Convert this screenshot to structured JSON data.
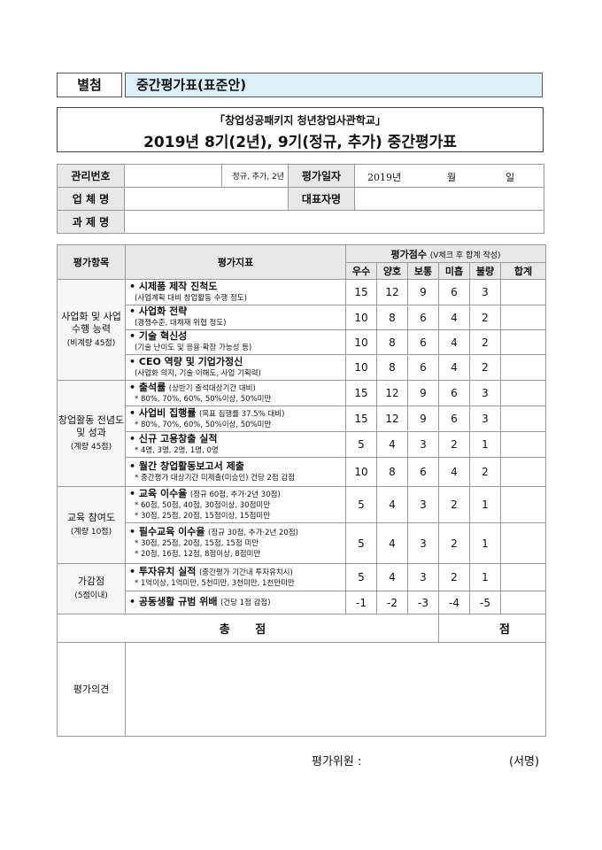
{
  "header": {
    "tag": "별첨",
    "form_name": "중간평가표(표준안)"
  },
  "title": {
    "line1": "「창업성공패키지 청년창업사관학교」",
    "line2": "2019년 8기(2년), 9기(정규, 추가) 중간평가표"
  },
  "info": {
    "mgmt_no_label": "관리번호",
    "program_type": "정규, 추가, 2년",
    "eval_date_label": "평가일자",
    "year": "2019년",
    "month": "월",
    "day": "일",
    "company_label": "업 체 명",
    "ceo_label": "대표자명",
    "task_label": "과 제 명"
  },
  "table_header": {
    "item": "평가항목",
    "indicator": "평가지표",
    "score": "평가점수",
    "score_note": "(V체크 후 합계 작성)",
    "grades": [
      "우수",
      "양호",
      "보통",
      "미흡",
      "불량"
    ],
    "sum": "합계"
  },
  "categories": [
    {
      "name": "사업화 및 사업수행 능력",
      "weight": "(비계량 45점)",
      "rows": [
        {
          "title": "시제품 제작 진척도",
          "hint": "",
          "note": "(사업계획 대비 창업활동 수행 정도)",
          "scores": [
            "15",
            "12",
            "9",
            "6",
            "3"
          ]
        },
        {
          "title": "사업화 전략",
          "hint": "",
          "note": "(경쟁수준, 대체재 위협 정도)",
          "scores": [
            "10",
            "8",
            "6",
            "4",
            "2"
          ]
        },
        {
          "title": "기술 혁신성",
          "hint": "",
          "note": "(기술 난이도 및 응용·확장 가능성 등)",
          "scores": [
            "10",
            "8",
            "6",
            "4",
            "2"
          ]
        },
        {
          "title": "CEO 역량 및 기업가정신",
          "hint": "",
          "note": "(사업화 의지, 기술 이해도, 사업 기획력)",
          "scores": [
            "10",
            "8",
            "6",
            "4",
            "2"
          ]
        }
      ]
    },
    {
      "name": "창업활동 전념도 및 성과",
      "weight": "(계량 45점)",
      "rows": [
        {
          "title": "출석률",
          "hint": "(상반기 출석대상기간 대비)",
          "note": "* 80%, 70%, 60%, 50%이상, 50%미만",
          "scores": [
            "15",
            "12",
            "9",
            "6",
            "3"
          ]
        },
        {
          "title": "사업비 집행률",
          "hint": "(목표 집행률 37.5% 대비)",
          "note": "* 80%, 70%, 60%, 50%이상, 50%미만",
          "scores": [
            "15",
            "12",
            "9",
            "6",
            "3"
          ]
        },
        {
          "title": "신규 고용창출 실적",
          "hint": "",
          "note": "* 4명, 3명, 2명, 1명, 0명",
          "scores": [
            "5",
            "4",
            "3",
            "2",
            "1"
          ]
        },
        {
          "title": "월간 창업활동보고서 제출",
          "hint": "",
          "note": "* 중간평가 대상기간 미제출(미승인) 건당 2점 감점",
          "scores": [
            "10",
            "8",
            "6",
            "4",
            "2"
          ]
        }
      ]
    },
    {
      "name": "교육 참여도",
      "weight": "(계량 10점)",
      "rows": [
        {
          "title": "교육 이수율",
          "hint": "(정규 60점, 추가·2년 30점)",
          "note": "* 60점, 50점, 40점, 30점이상, 30점미만",
          "note2": "* 30점, 25점, 20점, 15점이상, 15점미만",
          "scores": [
            "5",
            "4",
            "3",
            "2",
            "1"
          ]
        },
        {
          "title": "필수교육 이수율",
          "hint": "(정규 30점, 추가·2년 20점)",
          "note": "* 30점, 25점, 20점, 15점, 15점 미만",
          "note2": "* 20점, 16점,   12점,   8점이상,   8점미만",
          "scores": [
            "5",
            "4",
            "3",
            "2",
            "1"
          ]
        }
      ]
    },
    {
      "name": "가감점",
      "weight": "(5점이내)",
      "rows": [
        {
          "title": "투자유치 실적",
          "hint": "(중간평가 기간내 투자유치시)",
          "note": "* 1억이상, 1억미만, 5천미만, 3천미만, 1천만미만",
          "scores": [
            "5",
            "4",
            "3",
            "2",
            "1"
          ]
        },
        {
          "title": "공동생활 규범 위배",
          "hint": "(건당 1점 감점)",
          "note": "",
          "scores": [
            "-1",
            "-2",
            "-3",
            "-4",
            "-5"
          ]
        }
      ]
    }
  ],
  "total": {
    "label": "총 점",
    "unit": "점"
  },
  "opinion_label": "평가의견",
  "signature": {
    "label": "평가위원 :",
    "sign": "(서명)"
  }
}
